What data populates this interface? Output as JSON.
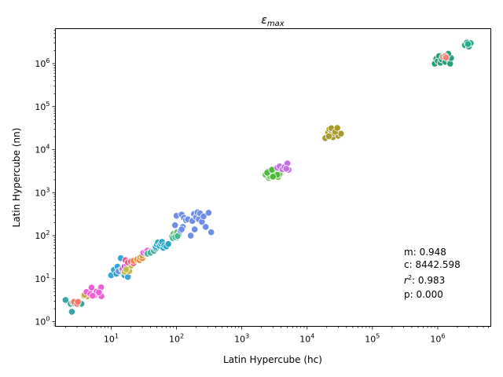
{
  "chart_data": {
    "type": "scatter",
    "title": "ε_max",
    "title_parts": {
      "base": "ε",
      "sub": "max"
    },
    "xlabel": "Latin Hypercube (hc)",
    "ylabel": "Latin Hypercube (nn)",
    "xscale": "log",
    "yscale": "log",
    "xlim": [
      1.4,
      6500000
    ],
    "ylim": [
      0.78,
      6500000
    ],
    "xticks": [
      {
        "value": 10,
        "base": "10",
        "exp": "1"
      },
      {
        "value": 100,
        "base": "10",
        "exp": "2"
      },
      {
        "value": 1000,
        "base": "10",
        "exp": "3"
      },
      {
        "value": 10000,
        "base": "10",
        "exp": "4"
      },
      {
        "value": 100000,
        "base": "10",
        "exp": "5"
      },
      {
        "value": 1000000,
        "base": "10",
        "exp": "6"
      }
    ],
    "yticks": [
      {
        "value": 1,
        "base": "10",
        "exp": "0"
      },
      {
        "value": 10,
        "base": "10",
        "exp": "1"
      },
      {
        "value": 100,
        "base": "10",
        "exp": "2"
      },
      {
        "value": 1000,
        "base": "10",
        "exp": "3"
      },
      {
        "value": 10000,
        "base": "10",
        "exp": "4"
      },
      {
        "value": 100000,
        "base": "10",
        "exp": "5"
      },
      {
        "value": 1000000,
        "base": "10",
        "exp": "6"
      }
    ],
    "grid": false,
    "legend": "none",
    "annotation": {
      "m": {
        "label": "m",
        "value": "0.948"
      },
      "c": {
        "label": "c",
        "value": "8442.598"
      },
      "r2": {
        "label": "r",
        "sup": "2",
        "value": "0.983"
      },
      "p": {
        "label": "p",
        "value": "0.000"
      }
    },
    "series": [
      {
        "color": "#3ba3a3",
        "points": [
          [
            2.0,
            3.2
          ],
          [
            2.4,
            2.6
          ],
          [
            2.5,
            1.7
          ],
          [
            2.6,
            2.8
          ],
          [
            3.5,
            2.6
          ],
          [
            2.7,
            2.7
          ]
        ]
      },
      {
        "color": "#f7736b",
        "points": [
          [
            2.7,
            2.9
          ],
          [
            3.0,
            2.6
          ],
          [
            3.1,
            2.9
          ]
        ]
      },
      {
        "color": "#c3a64a",
        "points": [
          [
            3.8,
            4.0
          ],
          [
            4.3,
            3.9
          ],
          [
            4.1,
            4.6
          ],
          [
            3.9,
            4.2
          ]
        ]
      },
      {
        "color": "#f05fd6",
        "points": [
          [
            4.2,
            4.9
          ],
          [
            5.0,
            6.2
          ],
          [
            5.5,
            4.0
          ],
          [
            6.0,
            5.0
          ],
          [
            7.0,
            6.3
          ],
          [
            7.1,
            3.9
          ],
          [
            4.8,
            4.4
          ],
          [
            5.2,
            4.0
          ],
          [
            6.5,
            4.8
          ]
        ]
      },
      {
        "color": "#35a5d8",
        "points": [
          [
            10.0,
            12.0
          ],
          [
            11.0,
            16.0
          ],
          [
            12.0,
            13.0
          ],
          [
            13.0,
            17.0
          ],
          [
            14.0,
            30.0
          ],
          [
            15.0,
            14.0
          ],
          [
            16.0,
            12.0
          ],
          [
            17.0,
            18.0
          ],
          [
            18.0,
            11.0
          ],
          [
            12.5,
            19.0
          ],
          [
            15.5,
            15.5
          ]
        ]
      },
      {
        "color": "#6a8ed8",
        "points": [
          [
            13.0,
            15.0
          ],
          [
            14.5,
            16.5
          ],
          [
            16.5,
            19.5
          ]
        ]
      },
      {
        "color": "#c84ce0",
        "points": [
          [
            15.0,
            17.0
          ],
          [
            16.0,
            19.0
          ],
          [
            17.5,
            21.0
          ]
        ]
      },
      {
        "color": "#c3ba4a",
        "points": [
          [
            16.0,
            14.5
          ],
          [
            18.0,
            17.0
          ],
          [
            19.0,
            15.0
          ],
          [
            20.0,
            20.0
          ],
          [
            17.0,
            16.5
          ]
        ]
      },
      {
        "color": "#f05a8a",
        "points": [
          [
            16.5,
            27.0
          ],
          [
            18.0,
            24.0
          ],
          [
            20.0,
            25.0
          ],
          [
            22.0,
            23.0
          ]
        ]
      },
      {
        "color": "#ef8c3c",
        "points": [
          [
            22.0,
            26.0
          ],
          [
            25.0,
            28.0
          ],
          [
            27.0,
            27.0
          ],
          [
            28.0,
            31.0
          ],
          [
            30.0,
            30.0
          ]
        ]
      },
      {
        "color": "#b39a3a",
        "points": [
          [
            30.0,
            35.0
          ],
          [
            33.0,
            38.0
          ]
        ]
      },
      {
        "color": "#e06ad0",
        "points": [
          [
            31.0,
            40.0
          ],
          [
            34.0,
            42.0
          ],
          [
            36.0,
            45.0
          ],
          [
            38.0,
            39.0
          ],
          [
            40.0,
            43.0
          ]
        ]
      },
      {
        "color": "#4cb0a0",
        "points": [
          [
            36.0,
            38.0
          ],
          [
            40.0,
            40.0
          ],
          [
            45.0,
            44.0
          ],
          [
            48.0,
            50.0
          ]
        ]
      },
      {
        "color": "#2aa8c9",
        "points": [
          [
            48.0,
            55.0
          ],
          [
            50.0,
            62.0
          ],
          [
            52.0,
            70.0
          ],
          [
            55.0,
            58.0
          ],
          [
            58.0,
            65.0
          ],
          [
            60.0,
            72.0
          ],
          [
            63.0,
            52.0
          ],
          [
            65.0,
            60.0
          ],
          [
            70.0,
            56.0
          ],
          [
            75.0,
            64.0
          ]
        ]
      },
      {
        "color": "#6dbb6d",
        "points": [
          [
            85.0,
            95.0
          ],
          [
            90.0,
            110.0
          ],
          [
            95.0,
            100.0
          ],
          [
            100.0,
            90.0
          ],
          [
            102.0,
            120.0
          ],
          [
            108.0,
            105.0
          ]
        ]
      },
      {
        "color": "#44b890",
        "points": [
          [
            88.0,
            88.0
          ],
          [
            96.0,
            93.0
          ],
          [
            104.0,
            98.0
          ]
        ]
      },
      {
        "color": "#6d8de8",
        "points": [
          [
            95.0,
            175.0
          ],
          [
            100.0,
            290.0
          ],
          [
            115.0,
            130.0
          ],
          [
            120.0,
            310.0
          ],
          [
            125.0,
            160.0
          ],
          [
            130.0,
            260.0
          ],
          [
            140.0,
            230.0
          ],
          [
            150.0,
            240.0
          ],
          [
            165.0,
            100.0
          ],
          [
            175.0,
            220.0
          ],
          [
            185.0,
            320.0
          ],
          [
            190.0,
            140.0
          ],
          [
            200.0,
            270.0
          ],
          [
            210.0,
            350.0
          ],
          [
            220.0,
            240.0
          ],
          [
            230.0,
            330.0
          ],
          [
            245.0,
            210.0
          ],
          [
            260.0,
            280.0
          ],
          [
            280.0,
            160.0
          ],
          [
            310.0,
            340.0
          ],
          [
            340.0,
            120.0
          ],
          [
            120.0,
            140.0
          ]
        ]
      },
      {
        "color": "#72c85c",
        "points": [
          [
            2300.0,
            2600.0
          ],
          [
            2500.0,
            3100.0
          ],
          [
            2600.0,
            2200.0
          ],
          [
            2800.0,
            2800.0
          ],
          [
            3000.0,
            3300.0
          ],
          [
            3200.0,
            2500.0
          ],
          [
            3400.0,
            3000.0
          ],
          [
            3600.0,
            2300.0
          ],
          [
            3800.0,
            2700.0
          ],
          [
            3300.0,
            3600.0
          ],
          [
            2700.0,
            2400.0
          ],
          [
            3100.0,
            2900.0
          ]
        ]
      },
      {
        "color": "#4fb83c",
        "points": [
          [
            2450.0,
            2900.0
          ],
          [
            2900.0,
            3400.0
          ],
          [
            3500.0,
            2600.0
          ],
          [
            3000.0,
            2350.0
          ]
        ]
      },
      {
        "color": "#c66fe6",
        "points": [
          [
            3500.0,
            3800.0
          ],
          [
            3800.0,
            4100.0
          ],
          [
            4200.0,
            3500.0
          ],
          [
            4500.0,
            3900.0
          ],
          [
            5000.0,
            4800.0
          ],
          [
            5200.0,
            3400.0
          ],
          [
            4800.0,
            3600.0
          ]
        ]
      },
      {
        "color": "#a89a2c",
        "points": [
          [
            19000.0,
            18500.0
          ],
          [
            21000.0,
            25000.0
          ],
          [
            22000.0,
            30000.0
          ],
          [
            23000.0,
            22000.0
          ],
          [
            24000.0,
            27000.0
          ],
          [
            25000.0,
            19500.0
          ],
          [
            26000.0,
            24000.0
          ],
          [
            28000.0,
            29000.0
          ],
          [
            30000.0,
            21000.0
          ],
          [
            33000.0,
            23500.0
          ],
          [
            23500.0,
            31500.0
          ],
          [
            27000.0,
            26000.0
          ],
          [
            21500.0,
            20500.0
          ],
          [
            29000.0,
            32000.0
          ]
        ]
      },
      {
        "color": "#26a07a",
        "points": [
          [
            900000.0,
            1000000.0
          ],
          [
            950000.0,
            1300000.0
          ],
          [
            1000000.0,
            1150000.0
          ],
          [
            1050000.0,
            1500000.0
          ],
          [
            1100000.0,
            1050000.0
          ],
          [
            1150000.0,
            1250000.0
          ],
          [
            1250000.0,
            1400000.0
          ],
          [
            1300000.0,
            1100000.0
          ],
          [
            1400000.0,
            1600000.0
          ],
          [
            1500000.0,
            1200000.0
          ],
          [
            1550000.0,
            1000000.0
          ],
          [
            1600000.0,
            1350000.0
          ],
          [
            1450000.0,
            1700000.0
          ]
        ]
      },
      {
        "color": "#f08278",
        "points": [
          [
            1200000.0,
            1450000.0
          ],
          [
            1300000.0,
            1500000.0
          ],
          [
            1350000.0,
            1380000.0
          ]
        ]
      },
      {
        "color": "#2aa88a",
        "points": [
          [
            2600000.0,
            2700000.0
          ],
          [
            2800000.0,
            3100000.0
          ],
          [
            3000000.0,
            2500000.0
          ],
          [
            3200000.0,
            3000000.0
          ],
          [
            2900000.0,
            2850000.0
          ]
        ]
      }
    ]
  }
}
